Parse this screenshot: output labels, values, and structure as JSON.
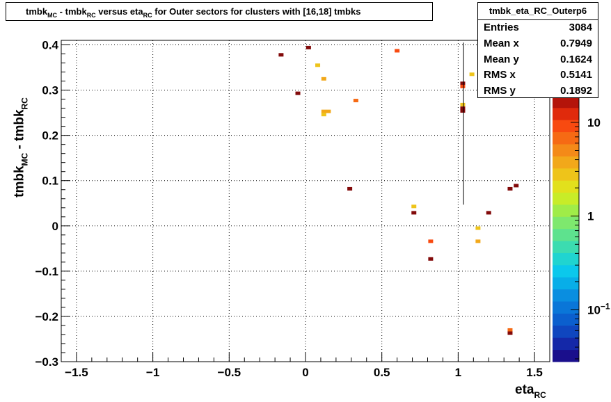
{
  "title": {
    "parts": [
      {
        "t": "tmbk",
        "sub": "MC"
      },
      {
        "t": " - tmbk",
        "sub": "RC"
      },
      {
        "t": " versus eta",
        "sub": "RC"
      },
      {
        "t": " for Outer sectors for clusters with [16,18] tmbks",
        "sub": ""
      }
    ]
  },
  "stats": {
    "name": "tmbk_eta_RC_Outerp6",
    "rows": [
      {
        "label": "Entries",
        "value": "3084"
      },
      {
        "label": "Mean x",
        "value": "0.7949"
      },
      {
        "label": "Mean y",
        "value": "0.1624"
      },
      {
        "label": "RMS x",
        "value": "0.5141"
      },
      {
        "label": "RMS y",
        "value": "0.1892"
      }
    ]
  },
  "axes": {
    "x_title": {
      "t": "eta",
      "sub": "RC"
    },
    "y_title": {
      "t": "tmbk",
      "sub1": "MC",
      "mid": " - tmbk",
      "sub2": "RC"
    }
  },
  "chart_data": {
    "type": "heatmap",
    "xlim": [
      -1.6,
      1.6
    ],
    "ylim": [
      -0.3,
      0.41
    ],
    "x_ticks": [
      "−1.5",
      "−1",
      "−0.5",
      "0",
      "0.5",
      "1",
      "1.5"
    ],
    "x_tick_values": [
      -1.5,
      -1,
      -0.5,
      0,
      0.5,
      1,
      1.5
    ],
    "y_ticks": [
      "−0.3",
      "−0.2",
      "−0.1",
      "0",
      "0.1",
      "0.2",
      "0.3",
      "0.4"
    ],
    "y_tick_values": [
      -0.3,
      -0.2,
      -0.1,
      0,
      0.1,
      0.2,
      0.3,
      0.4
    ],
    "grid": true,
    "log_z": true,
    "z_ticks": [
      "10−1",
      "1",
      "10"
    ],
    "z_tick_values": [
      0.1,
      1,
      10
    ],
    "palette": [
      "#1a0f8c",
      "#1428a8",
      "#0f46bf",
      "#0b5fce",
      "#0a76d8",
      "#0a8ee0",
      "#08aee8",
      "#0bc8ec",
      "#20d4d0",
      "#3cdcb0",
      "#5ee28e",
      "#7ee86e",
      "#a0ec48",
      "#c8ec28",
      "#e2e01c",
      "#eec41a",
      "#f2a81a",
      "#f48a18",
      "#f66a14",
      "#f84a10",
      "#e02a0c",
      "#b4140a",
      "#820a0a"
    ],
    "cells": [
      {
        "x": -0.16,
        "y": 0.378,
        "z": 20
      },
      {
        "x": 0.02,
        "y": 0.394,
        "z": 20
      },
      {
        "x": -0.05,
        "y": 0.293,
        "z": 20
      },
      {
        "x": 0.08,
        "y": 0.355,
        "z": 3
      },
      {
        "x": 0.12,
        "y": 0.325,
        "z": 4
      },
      {
        "x": 0.12,
        "y": 0.253,
        "z": 4
      },
      {
        "x": 0.15,
        "y": 0.253,
        "z": 4
      },
      {
        "x": 0.12,
        "y": 0.246,
        "z": 3
      },
      {
        "x": 0.33,
        "y": 0.277,
        "z": 6
      },
      {
        "x": 0.29,
        "y": 0.082,
        "z": 20
      },
      {
        "x": 0.6,
        "y": 0.387,
        "z": 8
      },
      {
        "x": 0.71,
        "y": 0.043,
        "z": 3
      },
      {
        "x": 0.71,
        "y": 0.029,
        "z": 20
      },
      {
        "x": 0.82,
        "y": -0.034,
        "z": 8
      },
      {
        "x": 0.82,
        "y": -0.073,
        "z": 20
      },
      {
        "x": 1.03,
        "y": 0.315,
        "z": 20
      },
      {
        "x": 1.03,
        "y": 0.308,
        "z": 10
      },
      {
        "x": 1.03,
        "y": 0.268,
        "z": 3
      },
      {
        "x": 1.03,
        "y": 0.26,
        "z": 20
      },
      {
        "x": 1.03,
        "y": 0.254,
        "z": 20
      },
      {
        "x": 1.09,
        "y": 0.335,
        "z": 3
      },
      {
        "x": 1.13,
        "y": -0.005,
        "z": 3
      },
      {
        "x": 1.13,
        "y": -0.034,
        "z": 4
      },
      {
        "x": 1.2,
        "y": 0.029,
        "z": 20
      },
      {
        "x": 1.34,
        "y": 0.082,
        "z": 20
      },
      {
        "x": 1.38,
        "y": 0.089,
        "z": 20
      },
      {
        "x": 1.34,
        "y": -0.23,
        "z": 6
      },
      {
        "x": 1.34,
        "y": -0.237,
        "z": 20
      }
    ],
    "error_bar": {
      "x": 1.035,
      "y_low": 0.047,
      "y_high": 0.405
    }
  }
}
